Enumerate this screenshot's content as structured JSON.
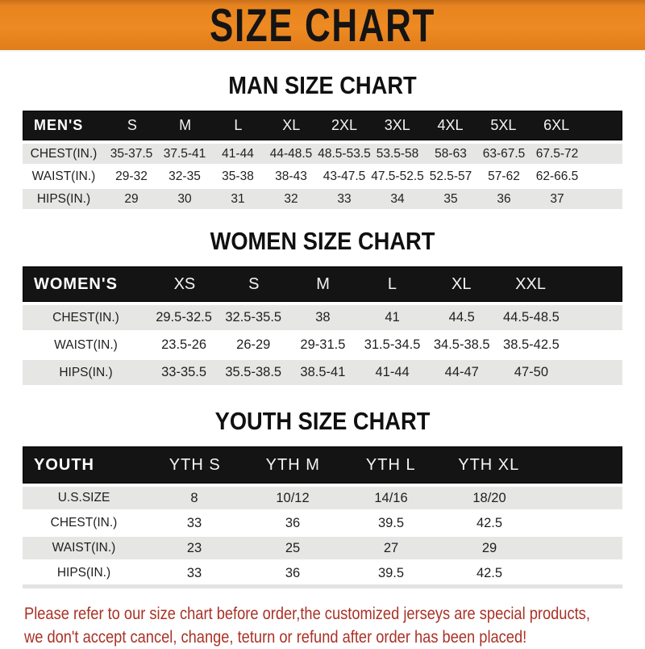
{
  "banner": {
    "title": "SIZE CHART",
    "background_color": "#E8841F",
    "text_color": "#141414"
  },
  "sections": {
    "men": {
      "title": "MAN SIZE CHART",
      "table": {
        "header": [
          "MEN'S",
          "S",
          "M",
          "L",
          "XL",
          "2XL",
          "3XL",
          "4XL",
          "5XL",
          "6XL"
        ],
        "rows": [
          {
            "label": "CHEST(IN.)",
            "cells": [
              "35-37.5",
              "37.5-41",
              "41-44",
              "44-48.5",
              "48.5-53.5",
              "53.5-58",
              "58-63",
              "63-67.5",
              "67.5-72"
            ]
          },
          {
            "label": "WAIST(IN.)",
            "cells": [
              "29-32",
              "32-35",
              "35-38",
              "38-43",
              "43-47.5",
              "47.5-52.5",
              "52.5-57",
              "57-62",
              "62-66.5"
            ]
          },
          {
            "label": "HIPS(IN.)",
            "cells": [
              "29",
              "30",
              "31",
              "32",
              "33",
              "34",
              "35",
              "36",
              "37"
            ]
          }
        ]
      }
    },
    "women": {
      "title": "WOMEN SIZE CHART",
      "table": {
        "header": [
          "WOMEN'S",
          "XS",
          "S",
          "M",
          "L",
          "XL",
          "XXL"
        ],
        "rows": [
          {
            "label": "CHEST(IN.)",
            "cells": [
              "29.5-32.5",
              "32.5-35.5",
              "38",
              "41",
              "44.5",
              "44.5-48.5"
            ]
          },
          {
            "label": "WAIST(IN.)",
            "cells": [
              "23.5-26",
              "26-29",
              "29-31.5",
              "31.5-34.5",
              "34.5-38.5",
              "38.5-42.5"
            ]
          },
          {
            "label": "HIPS(IN.)",
            "cells": [
              "33-35.5",
              "35.5-38.5",
              "38.5-41",
              "41-44",
              "44-47",
              "47-50"
            ]
          }
        ]
      }
    },
    "youth": {
      "title": "YOUTH SIZE CHART",
      "table": {
        "header": [
          "YOUTH",
          "YTH S",
          "YTH M",
          "YTH L",
          "YTH XL"
        ],
        "rows": [
          {
            "label": "U.S.SIZE",
            "cells": [
              "8",
              "10/12",
              "14/16",
              "18/20"
            ]
          },
          {
            "label": "CHEST(IN.)",
            "cells": [
              "33",
              "36",
              "39.5",
              "42.5"
            ]
          },
          {
            "label": "WAIST(IN.)",
            "cells": [
              "23",
              "25",
              "27",
              "29"
            ]
          },
          {
            "label": "HIPS(IN.)",
            "cells": [
              "33",
              "36",
              "39.5",
              "42.5"
            ]
          }
        ]
      }
    }
  },
  "notice": {
    "line1": "Please refer to our size chart before order,the customized jerseys are special products,",
    "line2": "we don't accept cancel, change, teturn or refund after order has been placed!",
    "color": "#A93226"
  },
  "colors": {
    "header_bar": "#141414",
    "row_stripe": "#E6E6E5",
    "accent_orange": "#E8841F"
  }
}
